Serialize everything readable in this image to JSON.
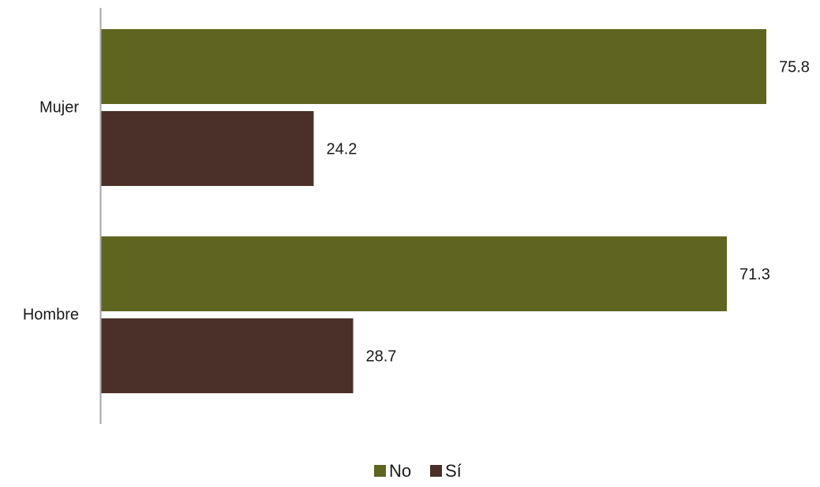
{
  "chart_data": {
    "type": "bar",
    "orientation": "horizontal",
    "categories": [
      "Mujer",
      "Hombre"
    ],
    "series": [
      {
        "name": "No",
        "color": "#5f6520",
        "values": [
          75.8,
          71.3
        ]
      },
      {
        "name": "Sí",
        "color": "#4b3029",
        "values": [
          24.2,
          28.7
        ]
      }
    ],
    "xlim": [
      0,
      75.8
    ],
    "grid": false,
    "legend_position": "bottom-center",
    "data_labels": true
  }
}
